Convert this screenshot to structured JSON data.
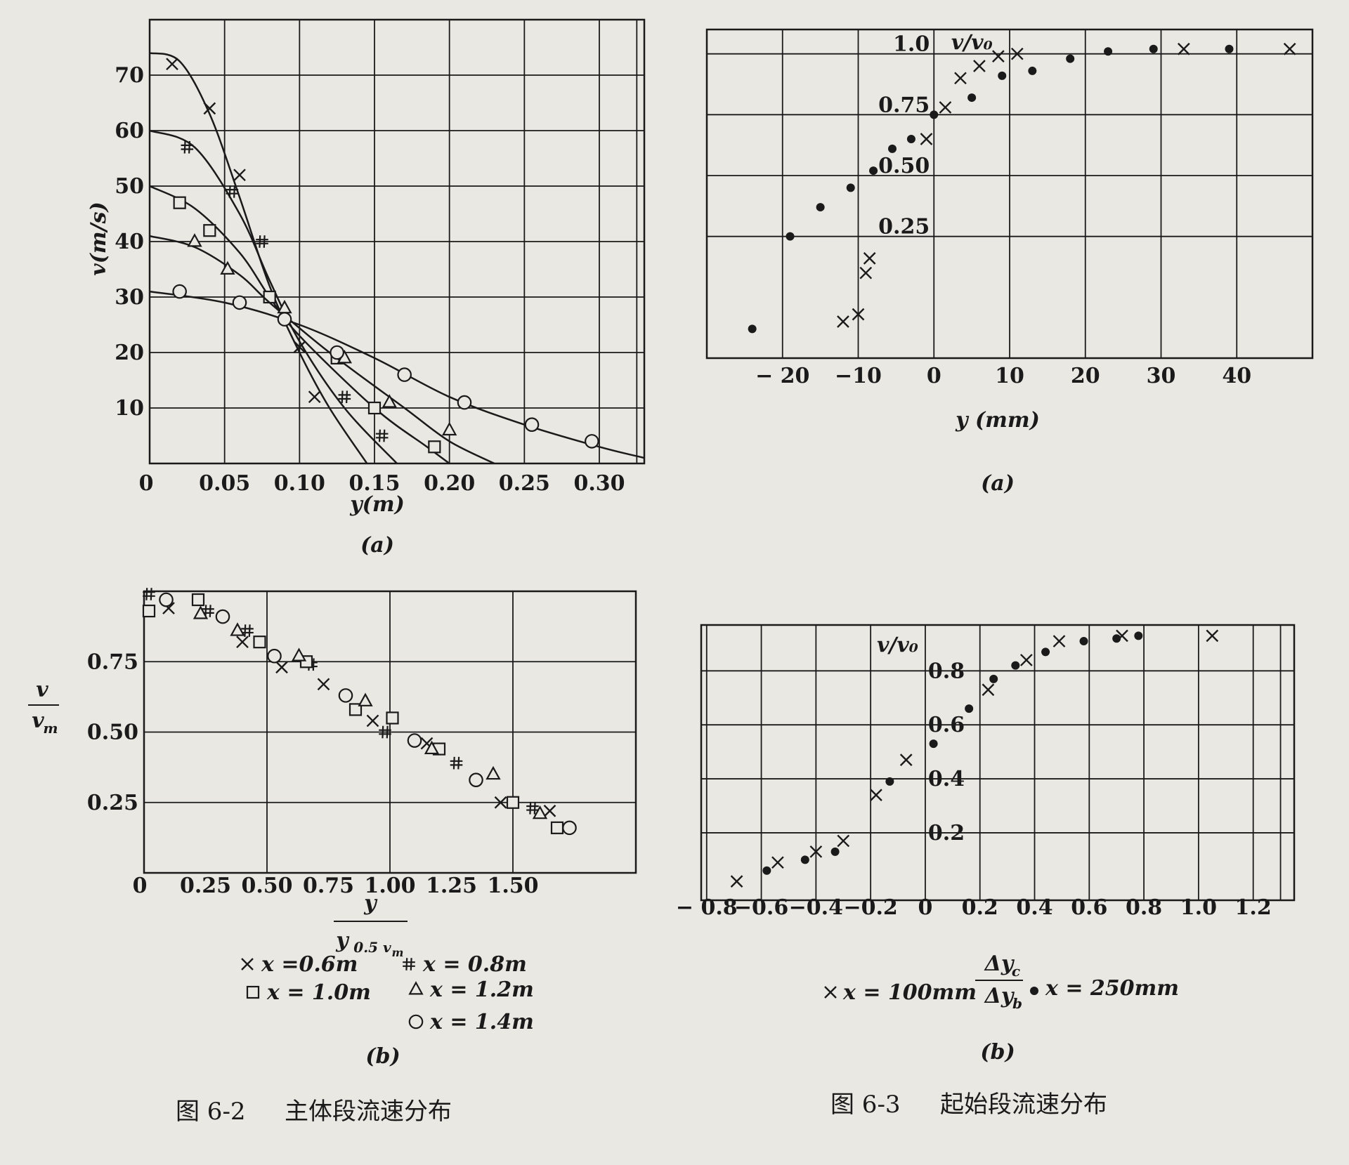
{
  "figures": {
    "fig_6_2": {
      "label": "图 6-2",
      "title": "主体段流速分布"
    },
    "fig_6_3": {
      "label": "图 6-3",
      "title": "起始段流速分布"
    }
  },
  "chart_data": [
    {
      "id": "fig-6-2a",
      "type": "line",
      "panel_label": "(a)",
      "xlabel": "y(m)",
      "ylabel": "v(m/s)",
      "xlim": [
        0,
        0.33
      ],
      "ylim": [
        0,
        80
      ],
      "xticks": [
        "0",
        "0.05",
        "0.10",
        "0.15",
        "0.20",
        "0.25",
        "0.30"
      ],
      "xtick_values": [
        0,
        0.05,
        0.1,
        0.15,
        0.2,
        0.25,
        0.3
      ],
      "yticks": [
        "10",
        "20",
        "30",
        "40",
        "50",
        "60",
        "70"
      ],
      "ytick_values": [
        10,
        20,
        30,
        40,
        50,
        60,
        70
      ],
      "grid": true,
      "series": [
        {
          "marker": "x",
          "curve": [
            [
              0,
              74
            ],
            [
              0.02,
              72.5
            ],
            [
              0.04,
              63
            ],
            [
              0.06,
              48
            ],
            [
              0.08,
              32
            ],
            [
              0.1,
              20
            ],
            [
              0.12,
              10
            ],
            [
              0.145,
              0
            ]
          ],
          "points": [
            [
              0.015,
              72
            ],
            [
              0.04,
              64
            ],
            [
              0.06,
              52
            ],
            [
              0.1,
              21
            ],
            [
              0.11,
              12
            ]
          ]
        },
        {
          "marker": "#",
          "curve": [
            [
              0,
              60
            ],
            [
              0.03,
              57
            ],
            [
              0.06,
              45
            ],
            [
              0.08,
              33
            ],
            [
              0.1,
              22
            ],
            [
              0.13,
              10
            ],
            [
              0.165,
              0
            ]
          ],
          "points": [
            [
              0.025,
              57
            ],
            [
              0.055,
              49
            ],
            [
              0.075,
              40
            ],
            [
              0.125,
              20
            ],
            [
              0.13,
              12
            ],
            [
              0.155,
              5
            ]
          ]
        },
        {
          "marker": "square",
          "curve": [
            [
              0,
              50
            ],
            [
              0.03,
              46
            ],
            [
              0.06,
              38
            ],
            [
              0.08,
              30
            ],
            [
              0.1,
              23
            ],
            [
              0.15,
              10
            ],
            [
              0.185,
              3
            ],
            [
              0.2,
              0
            ]
          ],
          "points": [
            [
              0.02,
              47
            ],
            [
              0.04,
              42
            ],
            [
              0.08,
              30
            ],
            [
              0.125,
              19
            ],
            [
              0.15,
              10
            ],
            [
              0.19,
              3
            ]
          ]
        },
        {
          "marker": "triangle",
          "curve": [
            [
              0,
              41
            ],
            [
              0.03,
              39
            ],
            [
              0.06,
              34
            ],
            [
              0.08,
              29
            ],
            [
              0.12,
              20
            ],
            [
              0.17,
              10
            ],
            [
              0.2,
              4
            ],
            [
              0.23,
              0
            ]
          ],
          "points": [
            [
              0.03,
              40
            ],
            [
              0.052,
              35
            ],
            [
              0.09,
              28
            ],
            [
              0.13,
              19
            ],
            [
              0.16,
              11
            ],
            [
              0.2,
              6
            ]
          ]
        },
        {
          "marker": "circle",
          "curve": [
            [
              0,
              31
            ],
            [
              0.05,
              29
            ],
            [
              0.1,
              25
            ],
            [
              0.15,
              19
            ],
            [
              0.2,
              12
            ],
            [
              0.25,
              7
            ],
            [
              0.3,
              3
            ],
            [
              0.33,
              1
            ]
          ],
          "points": [
            [
              0.02,
              31
            ],
            [
              0.06,
              29
            ],
            [
              0.09,
              26
            ],
            [
              0.125,
              20
            ],
            [
              0.17,
              16
            ],
            [
              0.21,
              11
            ],
            [
              0.255,
              7
            ],
            [
              0.295,
              4
            ]
          ]
        }
      ]
    },
    {
      "id": "fig-6-2b",
      "type": "scatter",
      "panel_label": "(b)",
      "xlabel_num": "y",
      "xlabel_den": "y",
      "xlabel_den_sub": "0.5 v",
      "xlabel_den_sub2": "m",
      "ylabel_num": "v",
      "ylabel_den": "v",
      "ylabel_den_sub": "m",
      "xlim": [
        0,
        2
      ],
      "ylim": [
        0,
        1
      ],
      "xticks": [
        "0",
        "0.25",
        "0.50",
        "0.75",
        "1.00",
        "1.25",
        "1.50"
      ],
      "xtick_values": [
        0,
        0.25,
        0.5,
        0.75,
        1.0,
        1.25,
        1.5
      ],
      "yticks": [
        "0.25",
        "0.50",
        "0.75"
      ],
      "ytick_values": [
        0.25,
        0.5,
        0.75
      ],
      "grid": true,
      "legend": [
        {
          "marker": "x",
          "label": "x =0.6m"
        },
        {
          "marker": "#",
          "label": "x = 0.8m"
        },
        {
          "marker": "square",
          "label": "x = 1.0m"
        },
        {
          "marker": "triangle",
          "label": "x = 1.2m"
        },
        {
          "marker": "circle",
          "label": "x = 1.4m"
        }
      ],
      "series": [
        {
          "name": "x =0.6m",
          "marker": "x",
          "points": [
            [
              0.1,
              0.94
            ],
            [
              0.4,
              0.82
            ],
            [
              0.56,
              0.73
            ],
            [
              0.73,
              0.67
            ],
            [
              0.93,
              0.54
            ],
            [
              1.15,
              0.46
            ],
            [
              1.45,
              0.25
            ],
            [
              1.65,
              0.22
            ]
          ]
        },
        {
          "name": "x = 0.8m",
          "marker": "#",
          "points": [
            [
              0.02,
              0.99
            ],
            [
              0.26,
              0.93
            ],
            [
              0.42,
              0.86
            ],
            [
              0.68,
              0.74
            ],
            [
              0.98,
              0.5
            ],
            [
              1.27,
              0.39
            ],
            [
              1.58,
              0.23
            ]
          ]
        },
        {
          "name": "x = 1.0m",
          "marker": "square",
          "points": [
            [
              0.02,
              0.93
            ],
            [
              0.22,
              0.97
            ],
            [
              0.47,
              0.82
            ],
            [
              0.66,
              0.75
            ],
            [
              0.86,
              0.58
            ],
            [
              1.01,
              0.55
            ],
            [
              1.2,
              0.44
            ],
            [
              1.5,
              0.25
            ],
            [
              1.68,
              0.16
            ]
          ]
        },
        {
          "name": "x = 1.2m",
          "marker": "triangle",
          "points": [
            [
              0.23,
              0.92
            ],
            [
              0.38,
              0.86
            ],
            [
              0.63,
              0.77
            ],
            [
              0.9,
              0.61
            ],
            [
              1.17,
              0.44
            ],
            [
              1.42,
              0.35
            ],
            [
              1.61,
              0.21
            ]
          ]
        },
        {
          "name": "x = 1.4m",
          "marker": "circle",
          "points": [
            [
              0.09,
              0.97
            ],
            [
              0.32,
              0.91
            ],
            [
              0.53,
              0.77
            ],
            [
              0.82,
              0.63
            ],
            [
              1.1,
              0.47
            ],
            [
              1.35,
              0.33
            ],
            [
              1.73,
              0.16
            ]
          ]
        }
      ]
    },
    {
      "id": "fig-6-3a",
      "type": "scatter",
      "panel_label": "(a)",
      "xlabel": "y (mm)",
      "ylabel": "v/v₀",
      "xlim": [
        -30,
        50
      ],
      "ylim": [
        -0.25,
        1.1
      ],
      "xticks": [
        "− 20",
        "−10",
        "0",
        "10",
        "20",
        "30",
        "40"
      ],
      "xtick_values": [
        -20,
        -10,
        0,
        10,
        20,
        30,
        40
      ],
      "yticks": [
        "0.25",
        "0.50",
        "0.75",
        "1.0"
      ],
      "ytick_values": [
        0.25,
        0.5,
        0.75,
        1.0
      ],
      "grid": true,
      "series": [
        {
          "marker": "x",
          "points": [
            [
              -12,
              -0.1
            ],
            [
              -10,
              -0.07
            ],
            [
              -9,
              0.1
            ],
            [
              -8.5,
              0.16
            ],
            [
              -1,
              0.65
            ],
            [
              1.5,
              0.78
            ],
            [
              3.5,
              0.9
            ],
            [
              6,
              0.95
            ],
            [
              8.5,
              0.99
            ],
            [
              11,
              1.0
            ],
            [
              33,
              1.02
            ],
            [
              47,
              1.02
            ]
          ]
        },
        {
          "marker": "dot",
          "points": [
            [
              -24,
              -0.13
            ],
            [
              -19,
              0.25
            ],
            [
              -15,
              0.37
            ],
            [
              -11,
              0.45
            ],
            [
              -8,
              0.52
            ],
            [
              -5.5,
              0.61
            ],
            [
              -3,
              0.65
            ],
            [
              0,
              0.75
            ],
            [
              5,
              0.82
            ],
            [
              9,
              0.91
            ],
            [
              13,
              0.93
            ],
            [
              18,
              0.98
            ],
            [
              23,
              1.01
            ],
            [
              29,
              1.02
            ],
            [
              39,
              1.02
            ]
          ]
        }
      ]
    },
    {
      "id": "fig-6-3b",
      "type": "scatter",
      "panel_label": "(b)",
      "xlabel_num": "Δy",
      "xlabel_num_sub": "c",
      "xlabel_den": "Δy",
      "xlabel_den_sub": "b",
      "ylabel": "v/v₀",
      "xlim": [
        -0.82,
        1.35
      ],
      "ylim": [
        -0.05,
        0.97
      ],
      "xticks": [
        "− 0.8",
        "−0.6",
        "−0.4",
        "−0.2",
        "0",
        "0.2",
        "0.4",
        "0.6",
        "0.8",
        "1.0",
        "1.2"
      ],
      "xtick_values": [
        -0.8,
        -0.6,
        -0.4,
        -0.2,
        0,
        0.2,
        0.4,
        0.6,
        0.8,
        1.0,
        1.2
      ],
      "yticks": [
        "0.2",
        "0.4",
        "0.6",
        "0.8"
      ],
      "ytick_values": [
        0.2,
        0.4,
        0.6,
        0.8
      ],
      "grid": true,
      "legend": [
        {
          "marker": "x",
          "label": "x = 100mm"
        },
        {
          "marker": "dot",
          "label": "x = 250mm"
        }
      ],
      "series": [
        {
          "name": "x = 100mm",
          "marker": "x",
          "points": [
            [
              -0.69,
              0.02
            ],
            [
              -0.54,
              0.09
            ],
            [
              -0.4,
              0.13
            ],
            [
              -0.3,
              0.17
            ],
            [
              -0.18,
              0.34
            ],
            [
              -0.07,
              0.47
            ],
            [
              0.23,
              0.73
            ],
            [
              0.37,
              0.84
            ],
            [
              0.49,
              0.91
            ],
            [
              0.72,
              0.93
            ],
            [
              1.05,
              0.93
            ]
          ]
        },
        {
          "name": "x = 250mm",
          "marker": "dot",
          "points": [
            [
              -0.58,
              0.06
            ],
            [
              -0.44,
              0.1
            ],
            [
              -0.33,
              0.13
            ],
            [
              -0.13,
              0.39
            ],
            [
              0.03,
              0.53
            ],
            [
              0.16,
              0.66
            ],
            [
              0.25,
              0.77
            ],
            [
              0.33,
              0.82
            ],
            [
              0.44,
              0.87
            ],
            [
              0.58,
              0.91
            ],
            [
              0.7,
              0.92
            ],
            [
              0.78,
              0.93
            ]
          ]
        }
      ]
    }
  ]
}
